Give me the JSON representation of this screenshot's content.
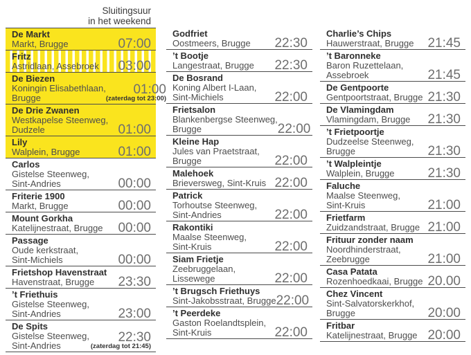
{
  "header": {
    "line1": "Sluitingsuur",
    "line2": "in het weekend"
  },
  "colors": {
    "highlight_yellow": "#FAE41E",
    "stripe_white": "#FFFFFF",
    "name_text": "#2F2F2F",
    "address_text": "#4D4D4D",
    "time_text": "#6E6E6E",
    "divider": "#4A4A4A"
  },
  "columns": [
    {
      "entries": [
        {
          "name": "De Markt",
          "address": [
            "Markt, Brugge"
          ],
          "time": "07:00",
          "highlight": "solid"
        },
        {
          "name": "Fritz",
          "address": [
            "Astridlaan, Assebroek"
          ],
          "time": "03:00",
          "highlight": "striped"
        },
        {
          "name": "De Biezen",
          "address": [
            "Koningin Elisabethlaan,",
            "Brugge"
          ],
          "time": "01:00",
          "note": "(zaterdag tot 23:00)",
          "highlight": "solid"
        },
        {
          "name": "De Drie Zwanen",
          "address": [
            "Westkapelse Steenweg,",
            "Dudzele"
          ],
          "time": "01:00",
          "highlight": "solid"
        },
        {
          "name": "Lily",
          "address": [
            "Walplein, Brugge"
          ],
          "time": "01:00",
          "highlight": "solid"
        },
        {
          "name": "Carlos",
          "address": [
            "Gistelse Steenweg,",
            "Sint-Andries"
          ],
          "time": "00:00"
        },
        {
          "name": "Friterie 1900",
          "address": [
            "Markt, Brugge"
          ],
          "time": "00:00"
        },
        {
          "name": "Mount Gorkha",
          "address": [
            "Katelijnestraat, Brugge"
          ],
          "time": "00:00"
        },
        {
          "name": "Passage",
          "address": [
            "Oude kerkstraat,",
            "Sint-Michiels"
          ],
          "time": "00:00"
        },
        {
          "name": "Frietshop Havenstraat",
          "address": [
            "Havenstraat, Brugge"
          ],
          "time": "23:30"
        },
        {
          "name": "’t Friethuis",
          "address": [
            "Gistelse Steenweg,",
            "Sint-Andries"
          ],
          "time": "23:00"
        },
        {
          "name": "De Spits",
          "address": [
            "Gistelse Steenweg,",
            "Sint-Andries"
          ],
          "time": "22:30",
          "note": "(zaterdag tot 21:45)"
        }
      ]
    },
    {
      "entries": [
        {
          "name": "Godfriet",
          "address": [
            "Oostmeers, Brugge"
          ],
          "time": "22:30"
        },
        {
          "name": "’t Bootje",
          "address": [
            "Langestraat, Brugge"
          ],
          "time": "22:30"
        },
        {
          "name": "De Bosrand",
          "address": [
            "Koning Albert I-Laan,",
            "Sint-Michiels"
          ],
          "time": "22:00"
        },
        {
          "name": "Frietsalon",
          "address": [
            "Blankenbergse Steenweg,",
            "Brugge"
          ],
          "time": "22:00"
        },
        {
          "name": "Kleine Hap",
          "address": [
            "Jules van Praetstraat,",
            "Brugge"
          ],
          "time": "22:00"
        },
        {
          "name": "Malehoek",
          "address": [
            "Brieversweg, Sint-Kruis"
          ],
          "time": "22:00"
        },
        {
          "name": "Patrick",
          "address": [
            "Torhoutse Steenweg,",
            "Sint-Andries"
          ],
          "time": "22:00"
        },
        {
          "name": "Rakontiki",
          "address": [
            "Maalse Steenweg,",
            "Sint-Kruis"
          ],
          "time": "22:00"
        },
        {
          "name": "Siam Frietje",
          "address": [
            "Zeebruggelaan,",
            "Lissewege"
          ],
          "time": "22:00"
        },
        {
          "name": "’t Brugsch Friethuys",
          "address": [
            "Sint-Jakobsstraat, Brugge"
          ],
          "time": "22:00"
        },
        {
          "name": "’t Peerdeke",
          "address": [
            "Gaston Roelandtsplein,",
            "Sint-Kruis"
          ],
          "time": "22:00"
        }
      ]
    },
    {
      "entries": [
        {
          "name": "Charlie’s Chips",
          "address": [
            "Hauwerstraat, Brugge"
          ],
          "time": "21:45"
        },
        {
          "name": "’t Baronneke",
          "address": [
            "Baron Ruzettelaan,",
            "Assebroek"
          ],
          "time": "21:45"
        },
        {
          "name": "De Gentpoorte",
          "address": [
            "Gentpoortstraat, Brugge"
          ],
          "time": "21:30"
        },
        {
          "name": "De Vlamingdam",
          "address": [
            "Vlamingdam, Brugge"
          ],
          "time": "21:30"
        },
        {
          "name": "’t Frietpoortje",
          "address": [
            "Dudzeelse Steenweg,",
            "Brugge"
          ],
          "time": "21:30"
        },
        {
          "name": "’t Walpleintje",
          "address": [
            "Walplein, Brugge"
          ],
          "time": "21:30"
        },
        {
          "name": "Faluche",
          "address": [
            "Maalse Steenweg,",
            "Sint-Kruis"
          ],
          "time": "21:00"
        },
        {
          "name": "Frietfarm",
          "address": [
            "Zuidzandstraat, Brugge"
          ],
          "time": "21:00"
        },
        {
          "name": "Frituur zonder naam",
          "address": [
            "Noordhinderstraat,",
            "Zeebrugge"
          ],
          "time": "21:00"
        },
        {
          "name": "Casa Patata",
          "address": [
            "Rozenhoedkaai, Brugge"
          ],
          "time": "20.00"
        },
        {
          "name": "Chez Vincent",
          "address": [
            "Sint-Salvatorskerkhof,",
            "Brugge"
          ],
          "time": "20:00"
        },
        {
          "name": "Fritbar",
          "address": [
            "Katelijnestraat, Brugge"
          ],
          "time": "20:00"
        }
      ]
    }
  ]
}
